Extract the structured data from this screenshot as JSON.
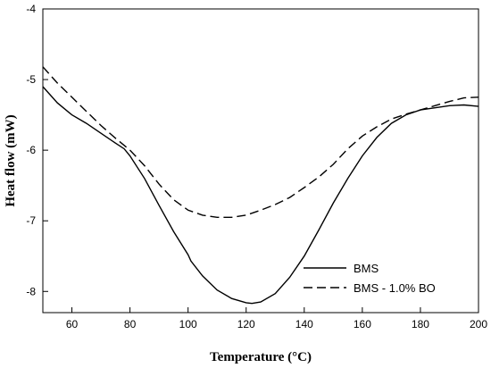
{
  "chart_data": {
    "type": "line",
    "title": "",
    "xlabel": "Temperature (°C)",
    "ylabel": "Heat flow (mW)",
    "xlim": [
      50,
      200
    ],
    "ylim": [
      -8.3,
      -4
    ],
    "x_ticks": [
      60,
      80,
      100,
      120,
      140,
      160,
      180,
      200
    ],
    "y_ticks": [
      -8,
      -7,
      -6,
      -5,
      -4
    ],
    "grid": false,
    "legend_position": "bottom-right",
    "series": [
      {
        "name": "BMS",
        "style": "solid",
        "color": "#000000",
        "x": [
          50,
          55,
          60,
          65,
          70,
          75,
          78,
          80,
          85,
          90,
          95,
          100,
          101,
          105,
          110,
          115,
          120,
          122,
          125,
          130,
          135,
          140,
          145,
          150,
          155,
          160,
          165,
          170,
          175,
          180,
          185,
          190,
          195,
          200
        ],
        "y": [
          -5.1,
          -5.33,
          -5.5,
          -5.62,
          -5.76,
          -5.9,
          -5.98,
          -6.08,
          -6.4,
          -6.78,
          -7.15,
          -7.48,
          -7.57,
          -7.78,
          -7.98,
          -8.1,
          -8.16,
          -8.17,
          -8.15,
          -8.03,
          -7.8,
          -7.5,
          -7.13,
          -6.75,
          -6.4,
          -6.08,
          -5.82,
          -5.62,
          -5.5,
          -5.43,
          -5.4,
          -5.37,
          -5.36,
          -5.38
        ]
      },
      {
        "name": "BMS - 1.0% BO",
        "style": "dashed",
        "color": "#000000",
        "x": [
          50,
          55,
          60,
          65,
          70,
          75,
          80,
          85,
          90,
          95,
          100,
          105,
          110,
          115,
          120,
          125,
          130,
          135,
          140,
          145,
          150,
          155,
          160,
          165,
          170,
          175,
          180,
          185,
          190,
          195,
          200
        ],
        "y": [
          -4.82,
          -5.05,
          -5.25,
          -5.45,
          -5.65,
          -5.83,
          -6.0,
          -6.22,
          -6.48,
          -6.7,
          -6.85,
          -6.92,
          -6.95,
          -6.95,
          -6.92,
          -6.85,
          -6.77,
          -6.67,
          -6.53,
          -6.38,
          -6.2,
          -5.98,
          -5.8,
          -5.67,
          -5.56,
          -5.49,
          -5.43,
          -5.37,
          -5.31,
          -5.26,
          -5.25
        ]
      }
    ]
  }
}
